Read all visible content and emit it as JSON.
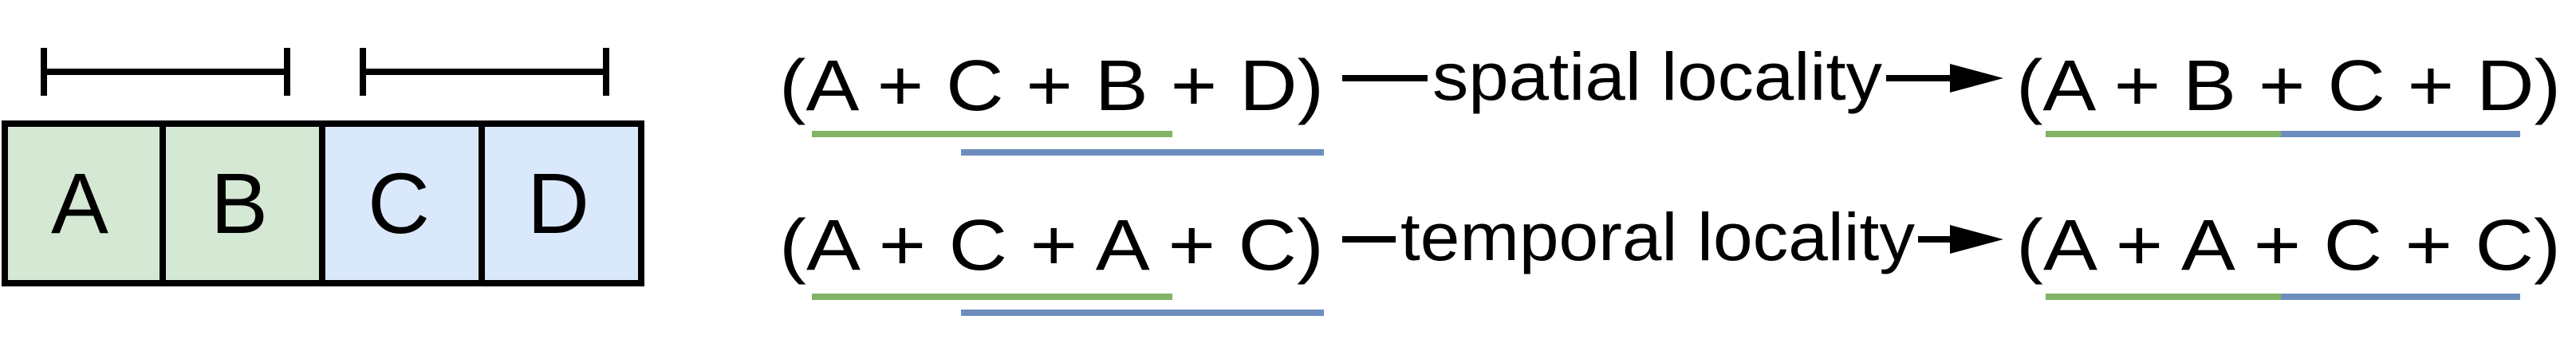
{
  "memory": {
    "cells": [
      {
        "label": "A",
        "color": "#d5e8d4"
      },
      {
        "label": "B",
        "color": "#d5e8d4"
      },
      {
        "label": "C",
        "color": "#dae8fc"
      },
      {
        "label": "D",
        "color": "#dae8fc"
      }
    ]
  },
  "colors": {
    "green_underline": "#82b366",
    "blue_underline": "#6c8ebf",
    "stroke": "#000000"
  },
  "rows": [
    {
      "left_expr": "(A + C + B + D)",
      "arrow_label": "spatial locality",
      "right_expr": "(A + B + C + D)"
    },
    {
      "left_expr": "(A + C + A + C)",
      "arrow_label": "temporal locality",
      "right_expr": "(A + A + C + C)"
    }
  ]
}
